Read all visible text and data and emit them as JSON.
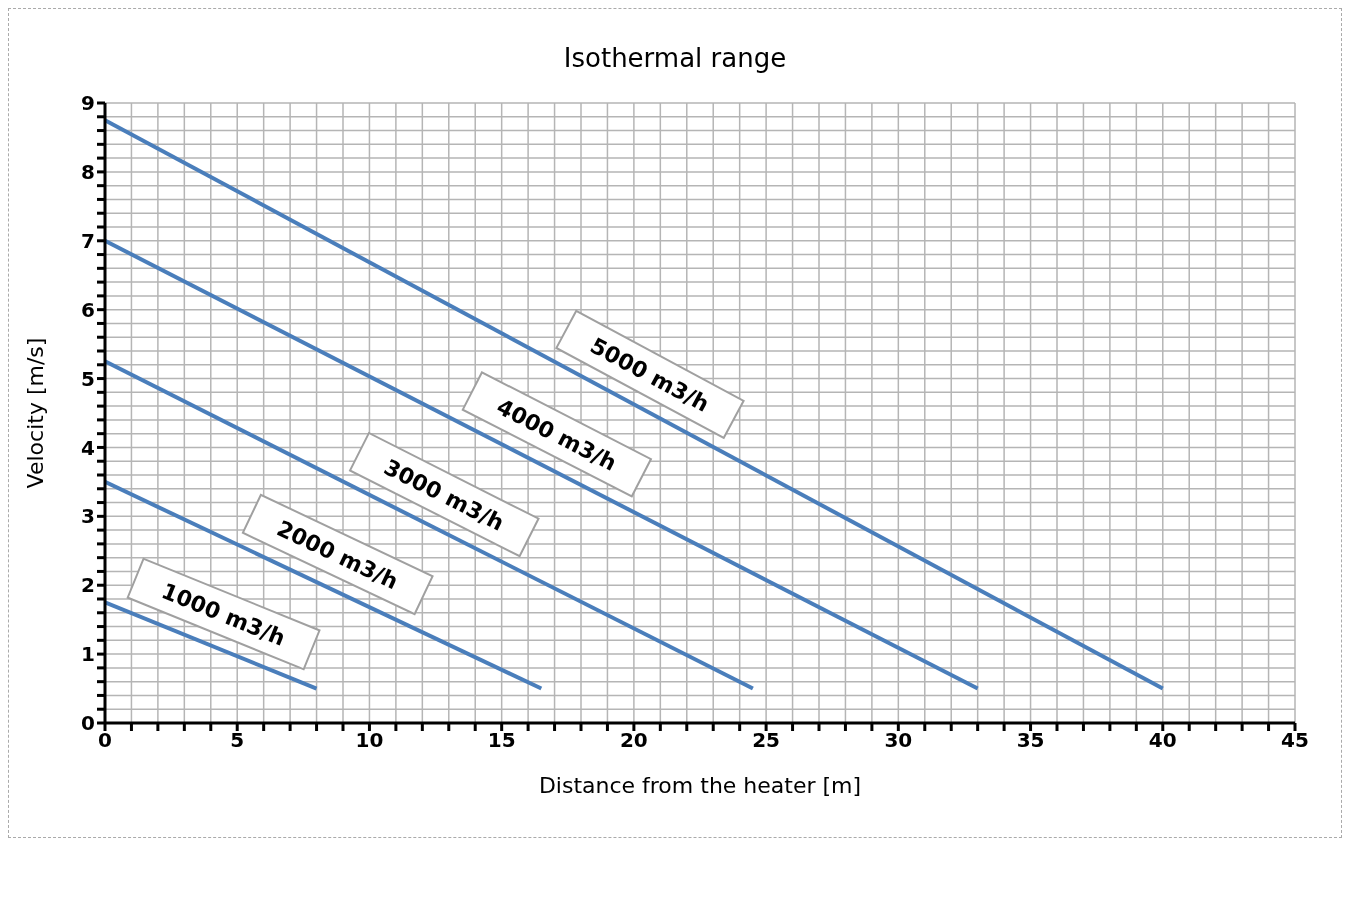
{
  "chart_data": {
    "type": "line",
    "title": "Isothermal range",
    "xlabel": "Distance from the heater [m]",
    "ylabel": "Velocity [m/s]",
    "series": [
      {
        "name": "1000 m3/h",
        "color": "#4a7ebb",
        "x": [
          0,
          8
        ],
        "values": [
          1.75,
          0.5
        ]
      },
      {
        "name": "2000 m3/h",
        "color": "#4a7ebb",
        "x": [
          0,
          16.5
        ],
        "values": [
          3.5,
          0.5
        ]
      },
      {
        "name": "3000 m3/h",
        "color": "#4a7ebb",
        "x": [
          0,
          24.5
        ],
        "values": [
          5.25,
          0.5
        ]
      },
      {
        "name": "4000 m3/h",
        "color": "#4a7ebb",
        "x": [
          0,
          33
        ],
        "values": [
          7,
          0.5
        ]
      },
      {
        "name": "5000 m3/h",
        "color": "#4a7ebb",
        "x": [
          0,
          40
        ],
        "values": [
          8.75,
          0.5
        ]
      }
    ],
    "xlim": [
      0,
      45
    ],
    "xticks": [
      0,
      {
        "value": 1,
        "label": null
      },
      {
        "value": 2,
        "label": null
      },
      {
        "value": 3,
        "label": null
      },
      {
        "value": 4,
        "label": null
      },
      5,
      {
        "value": 6,
        "label": null
      },
      {
        "value": 7,
        "label": null
      },
      {
        "value": 8,
        "label": null
      },
      {
        "value": 9,
        "label": null
      },
      10,
      {
        "value": 11,
        "label": null
      },
      {
        "value": 12,
        "label": null
      },
      {
        "value": 13,
        "label": null
      },
      {
        "value": 14,
        "label": null
      },
      15,
      {
        "value": 16,
        "label": null
      },
      {
        "value": 17,
        "label": null
      },
      {
        "value": 18,
        "label": null
      },
      {
        "value": 19,
        "label": null
      },
      20,
      {
        "value": 21,
        "label": null
      },
      {
        "value": 22,
        "label": null
      },
      {
        "value": 23,
        "label": null
      },
      {
        "value": 24,
        "label": null
      },
      25,
      {
        "value": 26,
        "label": null
      },
      {
        "value": 27,
        "label": null
      },
      {
        "value": 28,
        "label": null
      },
      {
        "value": 29,
        "label": null
      },
      30,
      {
        "value": 31,
        "label": null
      },
      {
        "value": 32,
        "label": null
      },
      {
        "value": 33,
        "label": null
      },
      {
        "value": 34,
        "label": null
      },
      35,
      {
        "value": 36,
        "label": null
      },
      {
        "value": 37,
        "label": null
      },
      {
        "value": 38,
        "label": null
      },
      {
        "value": 39,
        "label": null
      },
      40,
      {
        "value": 41,
        "label": null
      },
      {
        "value": 42,
        "label": null
      },
      {
        "value": 43,
        "label": null
      },
      {
        "value": 44,
        "label": null
      },
      45
    ],
    "ylim": [
      0,
      9
    ],
    "yticks": [
      0,
      {
        "value": 0.2,
        "label": null
      },
      {
        "value": 0.4,
        "label": null
      },
      {
        "value": 0.6,
        "label": null
      },
      {
        "value": 0.8,
        "label": null
      },
      1,
      {
        "value": 1.2,
        "label": null
      },
      {
        "value": 1.4,
        "label": null
      },
      {
        "value": 1.6,
        "label": null
      },
      {
        "value": 1.8,
        "label": null
      },
      2,
      {
        "value": 2.2,
        "label": null
      },
      {
        "value": 2.4,
        "label": null
      },
      {
        "value": 2.6,
        "label": null
      },
      {
        "value": 2.8,
        "label": null
      },
      3,
      {
        "value": 3.2,
        "label": null
      },
      {
        "value": 3.4,
        "label": null
      },
      {
        "value": 3.6,
        "label": null
      },
      {
        "value": 3.8,
        "label": null
      },
      4,
      {
        "value": 4.2,
        "label": null
      },
      {
        "value": 4.4,
        "label": null
      },
      {
        "value": 4.6,
        "label": null
      },
      {
        "value": 4.8,
        "label": null
      },
      5,
      {
        "value": 5.2,
        "label": null
      },
      {
        "value": 5.4,
        "label": null
      },
      {
        "value": 5.6,
        "label": null
      },
      {
        "value": 5.8,
        "label": null
      },
      6,
      {
        "value": 6.2,
        "label": null
      },
      {
        "value": 6.4,
        "label": null
      },
      {
        "value": 6.6,
        "label": null
      },
      {
        "value": 6.8,
        "label": null
      },
      7,
      {
        "value": 7.2,
        "label": null
      },
      {
        "value": 7.4,
        "label": null
      },
      {
        "value": 7.6,
        "label": null
      },
      {
        "value": 7.8,
        "label": null
      },
      8,
      {
        "value": 8.2,
        "label": null
      },
      {
        "value": 8.4,
        "label": null
      },
      {
        "value": 8.6,
        "label": null
      },
      {
        "value": 8.8,
        "label": null
      },
      9
    ],
    "grid": true,
    "marker": "none",
    "line_style": "solid"
  }
}
